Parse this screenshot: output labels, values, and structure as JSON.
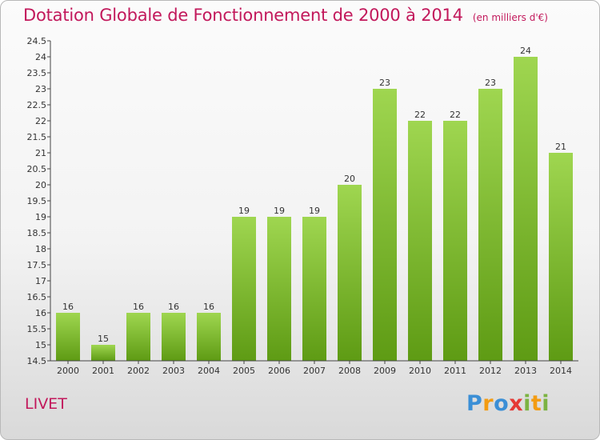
{
  "title": "Dotation Globale de Fonctionnement de 2000 à 2014",
  "subtitle": "(en milliers d'€)",
  "commune": "LIVET",
  "logo": {
    "letters": [
      "P",
      "r",
      "o",
      "x",
      "i",
      "t",
      "i"
    ],
    "colors": [
      "#3b8fd6",
      "#f39c12",
      "#3b8fd6",
      "#e53935",
      "#7cb342",
      "#f39c12",
      "#7cb342"
    ]
  },
  "colors": {
    "bar_light": "#9fd650",
    "bar_dark": "#5e9b14",
    "title": "#c2185b"
  },
  "chart_data": {
    "type": "bar",
    "categories": [
      "2000",
      "2001",
      "2002",
      "2003",
      "2004",
      "2005",
      "2006",
      "2007",
      "2008",
      "2009",
      "2010",
      "2011",
      "2012",
      "2013",
      "2014"
    ],
    "values": [
      16,
      15,
      16,
      16,
      16,
      19,
      19,
      19,
      20,
      23,
      22,
      22,
      23,
      24,
      21
    ],
    "value_labels": [
      "16",
      "15",
      "16",
      "16",
      "16",
      "19",
      "19",
      "19",
      "20",
      "23",
      "22",
      "22",
      "23",
      "24",
      "21"
    ],
    "ylim": [
      14.5,
      24.5
    ],
    "yticks": [
      14.5,
      15,
      15.5,
      16,
      16.5,
      17,
      17.5,
      18,
      18.5,
      19,
      19.5,
      20,
      20.5,
      21,
      21.5,
      22,
      22.5,
      23,
      23.5,
      24,
      24.5
    ],
    "ytick_labels": [
      "14.5",
      "15",
      "15.5",
      "16",
      "16.5",
      "17",
      "17.5",
      "18",
      "18.5",
      "19",
      "19.5",
      "20",
      "20.5",
      "21",
      "21.5",
      "22",
      "22.5",
      "23",
      "23.5",
      "24",
      "24.5"
    ],
    "grid": false
  }
}
